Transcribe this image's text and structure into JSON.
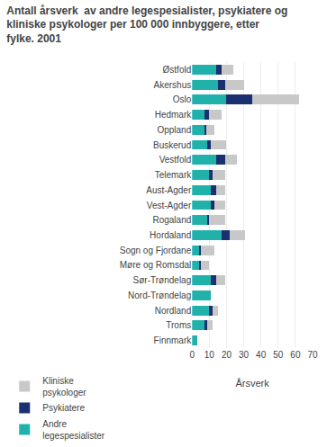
{
  "chart_data": {
    "type": "bar",
    "orientation": "horizontal",
    "stacked": true,
    "title": "Antall årsverk  av andre legespesialister, psykiatere og\nkliniske psykologer per 100 000 innbyggere, etter\nfylke. 2001",
    "categories": [
      "Østfold",
      "Akershus",
      "Oslo",
      "Hedmark",
      "Oppland",
      "Buskerud",
      "Vestfold",
      "Telemark",
      "Aust-Agder",
      "Vest-Agder",
      "Rogaland",
      "Hordaland",
      "Sogn og Fjordane",
      "Møre og Romsdal",
      "Sør-Trøndelag",
      "Nord-Trøndelag",
      "Nordland",
      "Troms",
      "Finnmark"
    ],
    "series": [
      {
        "name": "Andre\nlegespesialister",
        "color": "#20b2aa",
        "values": [
          14,
          15,
          20,
          7,
          7,
          9,
          14,
          10,
          11,
          11,
          9,
          17,
          4,
          4,
          11,
          11,
          10,
          7,
          3
        ]
      },
      {
        "name": "Psykiatere",
        "color": "#1a3070",
        "values": [
          3,
          4,
          15,
          3,
          1,
          2,
          5,
          2,
          3,
          2,
          1,
          5,
          1,
          1,
          3,
          0,
          2,
          2,
          0
        ]
      },
      {
        "name": "Kliniske\npsykologer",
        "color": "#c8c8c8",
        "values": [
          7,
          11,
          27,
          7,
          5,
          9,
          7,
          7,
          5,
          6,
          9,
          9,
          8,
          5,
          5,
          0,
          3,
          3,
          0
        ]
      }
    ],
    "xlabel": "Årsverk",
    "xlim": [
      0,
      70
    ],
    "xticks": [
      0,
      10,
      20,
      30,
      40,
      50,
      60,
      70
    ],
    "grid": true,
    "legend": "bottom"
  }
}
